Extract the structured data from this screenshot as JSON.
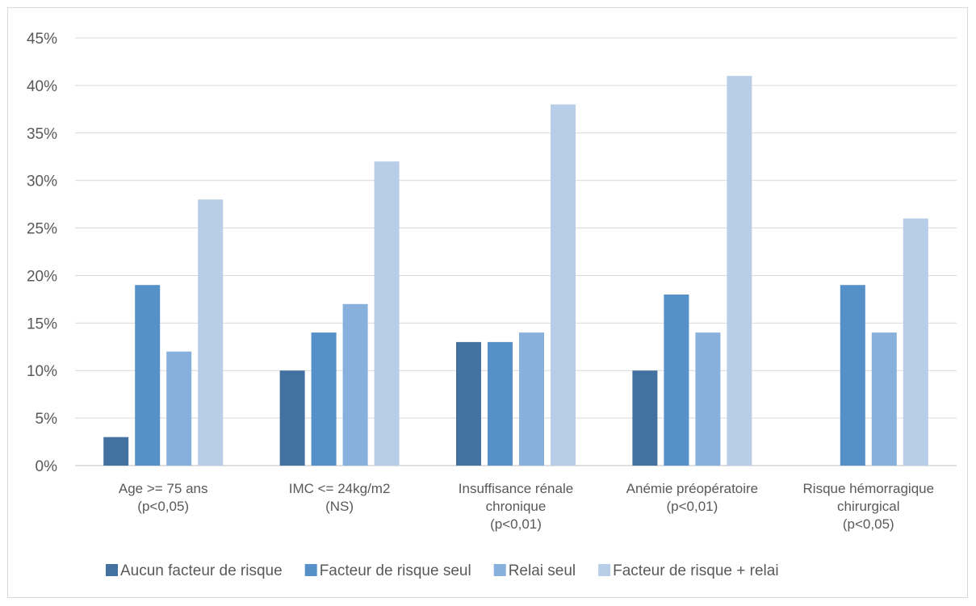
{
  "chart_data": {
    "type": "bar",
    "title": "",
    "xlabel": "",
    "ylabel": "",
    "ylim": [
      0,
      45
    ],
    "yticks": [
      "0%",
      "5%",
      "10%",
      "15%",
      "20%",
      "25%",
      "30%",
      "35%",
      "40%",
      "45%"
    ],
    "grid": true,
    "legend_position": "bottom",
    "categories": [
      [
        "Age >= 75 ans",
        "(p<0,05)"
      ],
      [
        "IMC <= 24kg/m2",
        "(NS)"
      ],
      [
        "Insuffisance rénale",
        "chronique",
        "(p<0,01)"
      ],
      [
        "Anémie préopératoire",
        "(p<0,01)"
      ],
      [
        "Risque hémorragique",
        "chirurgical",
        "(p<0,05)"
      ]
    ],
    "series": [
      {
        "name": "Aucun facteur de risque",
        "color": "#4472a0",
        "values": [
          3,
          10,
          13,
          10,
          0
        ]
      },
      {
        "name": "Facteur de risque seul",
        "color": "#5590c8",
        "values": [
          19,
          14,
          13,
          18,
          19
        ]
      },
      {
        "name": "Relai seul",
        "color": "#88b0dc",
        "values": [
          12,
          17,
          14,
          14,
          14
        ]
      },
      {
        "name": "Facteur de risque + relai",
        "color": "#b8cde8",
        "values": [
          28,
          32,
          38,
          41,
          26
        ]
      }
    ]
  }
}
